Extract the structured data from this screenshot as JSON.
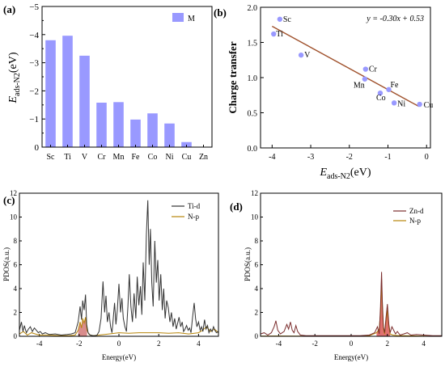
{
  "panel_labels": [
    "(a)",
    "(b)",
    "(c)",
    "(d)"
  ],
  "colors": {
    "bar": "#9999FF",
    "fit": "#A0522D",
    "marker": "#9999FF",
    "ti_d": "#333333",
    "n_p_c": "#B8860B",
    "zn_d": "#7B2E2E",
    "n_p_d": "#B8860B",
    "fill_ti": "#D98C8C",
    "fill_zn": "#E07070"
  },
  "chart_data": [
    {
      "id": "a",
      "type": "bar",
      "categories": [
        "Sc",
        "Ti",
        "V",
        "Cr",
        "Mn",
        "Fe",
        "Co",
        "Ni",
        "Cu",
        "Zn"
      ],
      "series": [
        {
          "name": "M",
          "values": [
            -3.8,
            -3.96,
            -3.25,
            -1.58,
            -1.6,
            -0.98,
            -1.2,
            -0.84,
            -0.18,
            0.0
          ]
        }
      ],
      "ylabel_main": "E",
      "ylabel_sub": "ads-N2",
      "ylabel_unit": "(eV)",
      "ylim": [
        0,
        -5
      ],
      "yticks": [
        0,
        -1,
        -2,
        -3,
        -4,
        -5
      ],
      "ytick_labels": [
        "0",
        "−1",
        "−2",
        "−3",
        "−4",
        "−5"
      ],
      "legend": "top-right"
    },
    {
      "id": "b",
      "type": "scatter",
      "points": [
        {
          "label": "Sc",
          "x": -3.8,
          "y": 1.83
        },
        {
          "label": "Ti",
          "x": -3.96,
          "y": 1.62
        },
        {
          "label": "V",
          "x": -3.25,
          "y": 1.32
        },
        {
          "label": "Cr",
          "x": -1.58,
          "y": 1.12
        },
        {
          "label": "Mn",
          "x": -1.6,
          "y": 0.98
        },
        {
          "label": "Fe",
          "x": -0.98,
          "y": 0.83
        },
        {
          "label": "Co",
          "x": -1.2,
          "y": 0.78
        },
        {
          "label": "Ni",
          "x": -0.84,
          "y": 0.64
        },
        {
          "label": "Cu",
          "x": -0.18,
          "y": 0.62
        }
      ],
      "fit": {
        "slope": -0.3,
        "intercept": 0.53,
        "x_range": [
          -4.0,
          -0.2
        ]
      },
      "equation": "y = -0.30x + 0.53",
      "xlabel_main": "E",
      "xlabel_sub": "ads-N2",
      "xlabel_unit": "(eV)",
      "ylabel": "Charge transfer",
      "xlim": [
        -4.3,
        0.1
      ],
      "ylim": [
        0.0,
        2.0
      ],
      "xticks": [
        -4,
        -3,
        -2,
        -1,
        0
      ],
      "xtick_labels": [
        "-4",
        "-3",
        "-2",
        "-1",
        "0"
      ],
      "yticks": [
        0.0,
        0.5,
        1.0,
        1.5,
        2.0
      ],
      "ytick_labels": [
        "0.0",
        "0.5",
        "1.0",
        "1.5",
        "2.0"
      ]
    },
    {
      "id": "c",
      "type": "line",
      "xlabel": "Energy(eV)",
      "ylabel": "PDOS(a.u.)",
      "xlim": [
        -5,
        5
      ],
      "ylim": [
        0,
        12
      ],
      "xticks": [
        -4,
        -2,
        0,
        2,
        4
      ],
      "xtick_labels": [
        "-4",
        "-2",
        "0",
        "2",
        "4"
      ],
      "yticks": [
        0,
        2,
        4,
        6,
        8,
        10,
        12
      ],
      "ytick_labels": [
        "0",
        "2",
        "4",
        "6",
        "8",
        "10",
        "12"
      ],
      "legend": "top-right",
      "series": [
        {
          "name": "Ti-d",
          "x": [
            -5.0,
            -4.9,
            -4.82,
            -4.75,
            -4.65,
            -4.55,
            -4.45,
            -4.35,
            -4.25,
            -4.15,
            -4.05,
            -3.95,
            -3.85,
            -3.7,
            -3.5,
            -3.2,
            -2.9,
            -2.6,
            -2.4,
            -2.2,
            -2.05,
            -1.95,
            -1.88,
            -1.82,
            -1.75,
            -1.68,
            -1.62,
            -1.55,
            -1.45,
            -1.3,
            -1.2,
            -1.1,
            -1.0,
            -0.9,
            -0.8,
            -0.72,
            -0.65,
            -0.58,
            -0.5,
            -0.42,
            -0.35,
            -0.3,
            -0.22,
            -0.15,
            -0.08,
            0.0,
            0.08,
            0.15,
            0.22,
            0.3,
            0.38,
            0.45,
            0.52,
            0.6,
            0.68,
            0.76,
            0.85,
            0.92,
            1.0,
            1.08,
            1.15,
            1.22,
            1.3,
            1.38,
            1.45,
            1.52,
            1.58,
            1.65,
            1.72,
            1.8,
            1.88,
            1.95,
            2.02,
            2.1,
            2.18,
            2.25,
            2.32,
            2.4,
            2.48,
            2.56,
            2.64,
            2.72,
            2.8,
            2.88,
            2.95,
            3.02,
            3.1,
            3.18,
            3.25,
            3.32,
            3.4,
            3.48,
            3.55,
            3.62,
            3.7,
            3.78,
            3.85,
            3.92,
            4.0,
            4.08,
            4.15,
            4.22,
            4.3,
            4.38,
            4.45,
            4.52,
            4.6,
            4.68,
            4.75,
            4.82,
            4.9,
            5.0
          ],
          "y": [
            0.5,
            1.2,
            0.4,
            0.9,
            0.3,
            0.6,
            0.8,
            0.4,
            0.7,
            0.5,
            0.3,
            0.4,
            0.2,
            0.3,
            0.15,
            0.2,
            0.1,
            0.15,
            0.2,
            0.3,
            1.2,
            2.5,
            1.4,
            3.0,
            2.2,
            3.5,
            1.0,
            0.3,
            0.1,
            0.05,
            0.05,
            0.1,
            0.4,
            1.5,
            4.6,
            2.0,
            3.4,
            1.2,
            2.0,
            0.8,
            0.3,
            1.2,
            2.8,
            1.0,
            2.2,
            4.4,
            2.0,
            3.2,
            1.5,
            0.8,
            0.4,
            2.5,
            5.2,
            2.5,
            1.2,
            3.6,
            1.5,
            5.0,
            2.6,
            4.2,
            1.8,
            6.2,
            3.0,
            8.5,
            11.4,
            6.0,
            9.0,
            4.5,
            2.5,
            8.0,
            4.5,
            6.4,
            3.0,
            5.2,
            2.2,
            4.0,
            1.5,
            3.0,
            2.4,
            1.2,
            2.0,
            0.8,
            1.5,
            0.6,
            1.1,
            1.6,
            0.8,
            1.2,
            0.4,
            0.6,
            0.9,
            0.5,
            0.7,
            0.3,
            1.6,
            2.8,
            1.5,
            0.8,
            1.2,
            0.5,
            0.8,
            0.4,
            1.4,
            0.6,
            0.9,
            0.3,
            0.6,
            0.4,
            0.8,
            0.5,
            0.3,
            0.4
          ]
        },
        {
          "name": "N-p",
          "x": [
            -5.0,
            -4.8,
            -4.6,
            -4.4,
            -4.2,
            -4.0,
            -3.6,
            -3.0,
            -2.5,
            -2.2,
            -2.05,
            -1.95,
            -1.88,
            -1.82,
            -1.75,
            -1.68,
            -1.6,
            -1.5,
            -1.3,
            -1.0,
            -0.5,
            0.0,
            0.5,
            1.0,
            1.5,
            2.0,
            2.5,
            3.0,
            3.5,
            4.0,
            4.2,
            4.4,
            4.6,
            4.8,
            5.0
          ],
          "y": [
            0.2,
            0.4,
            0.1,
            0.3,
            0.2,
            0.1,
            0.1,
            0.05,
            0.05,
            0.1,
            0.5,
            1.2,
            0.7,
            1.5,
            1.1,
            1.6,
            0.5,
            0.15,
            0.05,
            0.1,
            0.2,
            0.3,
            0.25,
            0.3,
            0.3,
            0.3,
            0.25,
            0.3,
            0.2,
            0.3,
            0.5,
            0.8,
            0.4,
            0.6,
            0.3
          ]
        }
      ]
    },
    {
      "id": "d",
      "type": "line",
      "xlabel": "Energy(eV)",
      "ylabel": "PDOS(a.u.)",
      "xlim": [
        -5,
        5
      ],
      "ylim": [
        0,
        12
      ],
      "xticks": [
        -4,
        -2,
        0,
        2,
        4
      ],
      "xtick_labels": [
        "-4",
        "-2",
        "0",
        "2",
        "4"
      ],
      "yticks": [
        0,
        2,
        4,
        6,
        8,
        10,
        12
      ],
      "ytick_labels": [
        "0",
        "2",
        "4",
        "6",
        "8",
        "10",
        "12"
      ],
      "legend": "top-right",
      "series": [
        {
          "name": "Zn-d",
          "x": [
            -5.0,
            -4.8,
            -4.6,
            -4.4,
            -4.25,
            -4.15,
            -4.05,
            -3.9,
            -3.7,
            -3.55,
            -3.45,
            -3.35,
            -3.25,
            -3.15,
            -3.05,
            -2.95,
            -2.8,
            -2.5,
            -2.0,
            -1.5,
            -1.0,
            -0.5,
            0.0,
            0.5,
            1.0,
            1.3,
            1.45,
            1.55,
            1.62,
            1.68,
            1.72,
            1.78,
            1.85,
            1.92,
            2.0,
            2.08,
            2.15,
            2.25,
            2.35,
            2.45,
            2.55,
            2.7,
            2.9,
            3.1,
            3.3,
            3.6,
            4.0,
            4.5,
            5.0
          ],
          "y": [
            0.2,
            0.3,
            0.1,
            0.3,
            0.8,
            1.3,
            0.5,
            0.2,
            0.4,
            1.0,
            0.6,
            1.2,
            0.5,
            0.3,
            0.9,
            0.4,
            0.1,
            0.05,
            0.05,
            0.05,
            0.05,
            0.05,
            0.05,
            0.05,
            0.1,
            0.3,
            0.8,
            0.2,
            2.5,
            5.4,
            3.0,
            0.8,
            0.3,
            1.5,
            2.7,
            1.0,
            0.3,
            0.8,
            0.5,
            0.2,
            0.4,
            0.1,
            0.2,
            0.3,
            0.1,
            0.15,
            0.1,
            0.05,
            0.05
          ]
        },
        {
          "name": "N-p",
          "x": [
            -5.0,
            -4.0,
            -3.0,
            -2.0,
            -1.0,
            0.0,
            1.0,
            1.4,
            1.55,
            1.62,
            1.68,
            1.72,
            1.78,
            1.85,
            1.92,
            2.0,
            2.08,
            2.15,
            2.3,
            2.6,
            3.0,
            4.0,
            5.0
          ],
          "y": [
            0.02,
            0.03,
            0.02,
            0.02,
            0.02,
            0.02,
            0.05,
            0.3,
            0.6,
            2.0,
            4.8,
            2.6,
            0.6,
            0.2,
            1.2,
            2.2,
            0.8,
            0.2,
            0.1,
            0.05,
            0.05,
            0.02,
            0.02
          ]
        }
      ]
    }
  ]
}
